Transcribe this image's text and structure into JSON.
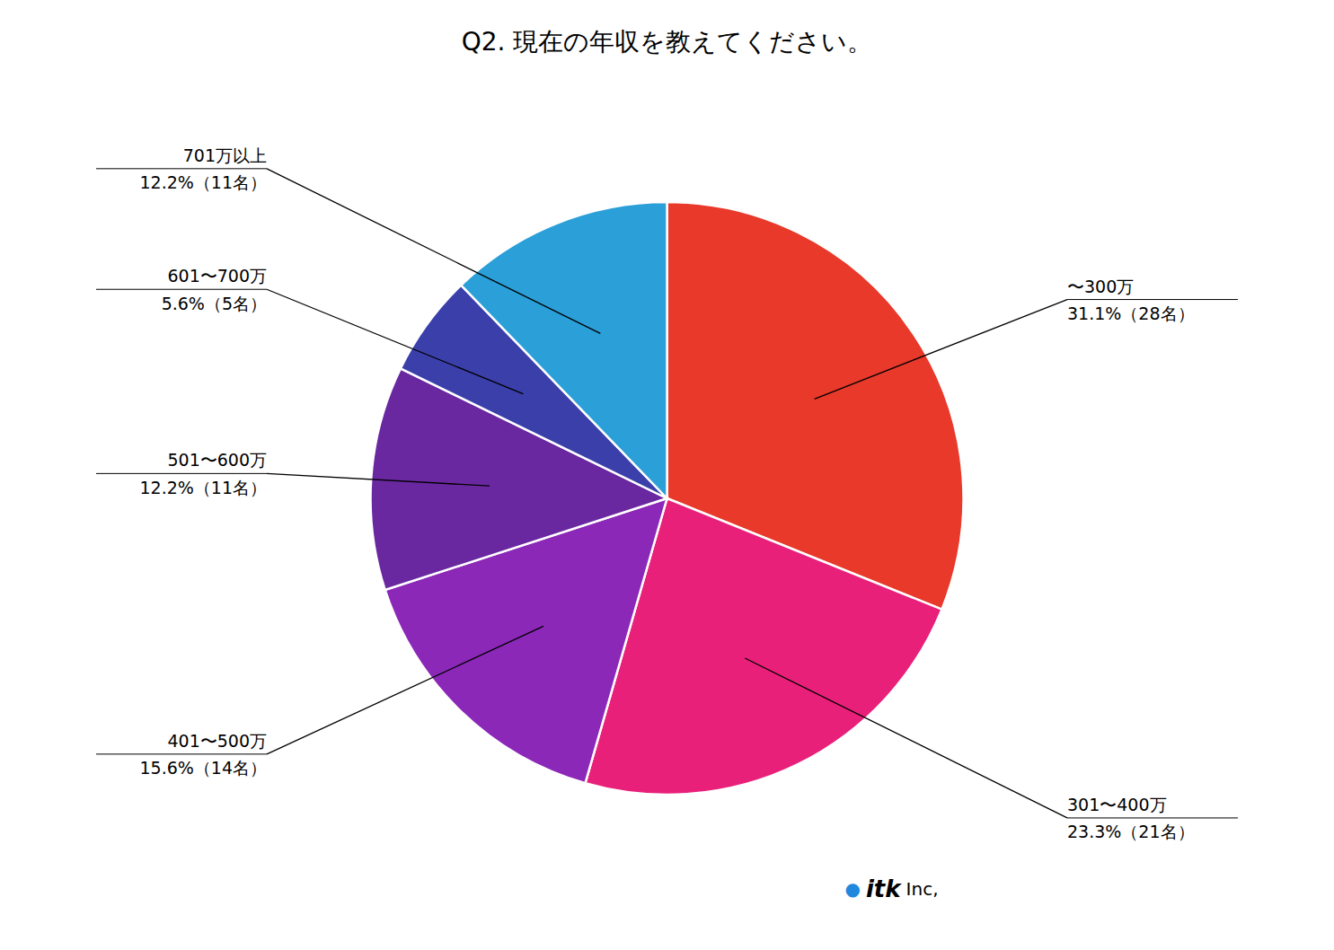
{
  "chart_data": {
    "type": "pie",
    "title": "Q2. 現在の年収を教えてください。",
    "categories": [
      "〜300万",
      "301〜400万",
      "401〜500万",
      "501〜600万",
      "601〜700万",
      "701万以上"
    ],
    "values": [
      28,
      21,
      14,
      11,
      5,
      11
    ],
    "value_labels": [
      "31.1%（28名）",
      "23.3%（21名）",
      "15.6%（14名）",
      "12.2%（11名）",
      "5.6%（5名）",
      "12.2%（11名）"
    ],
    "colors": [
      "#E8392A",
      "#E8207A",
      "#8B28B8",
      "#6A28A0",
      "#3B3FAA",
      "#2B9FD8"
    ],
    "data_labels": true,
    "annotations": [
      {
        "text": "●",
        "color": "#2288DD"
      },
      {
        "text": "itk"
      },
      {
        "text": "Inc,"
      }
    ]
  }
}
